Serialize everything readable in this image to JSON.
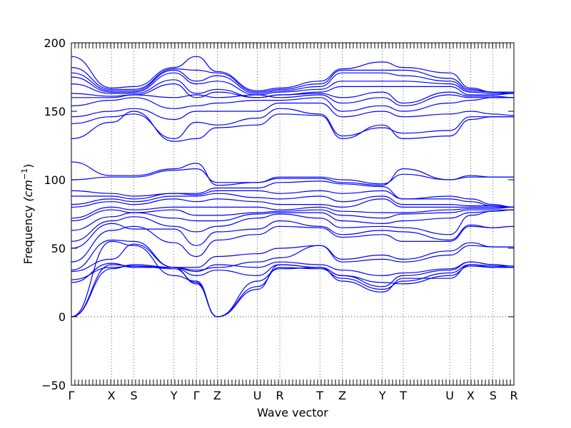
{
  "chart_data": {
    "type": "line",
    "xlabel": "Wave vector",
    "ylabel": "Frequency",
    "ylabel_unit": "(cm",
    "ylabel_unit_exp": "−1",
    "ylabel_unit_close": ")",
    "ylim": [
      -50,
      200
    ],
    "yticks": [
      -50,
      0,
      50,
      100,
      150,
      200
    ],
    "grid": false,
    "zero_line": "dotted",
    "line_color": "#0000ff",
    "high_symmetry_points": [
      {
        "label": "Γ",
        "x": 0.0
      },
      {
        "label": "X",
        "x": 0.5
      },
      {
        "label": "S",
        "x": 0.78
      },
      {
        "label": "Y",
        "x": 1.28
      },
      {
        "label": "Γ",
        "x": 1.56
      },
      {
        "label": "Z",
        "x": 1.82
      },
      {
        "label": "U",
        "x": 2.32
      },
      {
        "label": "R",
        "x": 2.6
      },
      {
        "label": "T",
        "x": 3.1
      },
      {
        "label": "Z",
        "x": 3.38
      },
      {
        "label": "Y",
        "x": 3.88
      },
      {
        "label": "T",
        "x": 4.14
      },
      {
        "label": "U",
        "x": 4.72
      },
      {
        "label": "X",
        "x": 4.98
      },
      {
        "label": "S",
        "x": 5.26
      },
      {
        "label": "R",
        "x": 5.52
      }
    ],
    "series": [
      {
        "values": [
          0,
          35,
          38,
          36,
          24,
          0,
          20,
          38,
          36,
          30,
          25,
          24,
          30,
          37,
          36,
          36
        ]
      },
      {
        "values": [
          0,
          38,
          37,
          35,
          25,
          0,
          22,
          36,
          35,
          28,
          20,
          26,
          32,
          38,
          36,
          36
        ]
      },
      {
        "values": [
          0,
          55,
          52,
          30,
          26,
          0,
          26,
          35,
          36,
          26,
          18,
          28,
          28,
          38,
          37,
          36
        ]
      },
      {
        "values": [
          25,
          39,
          36,
          36,
          30,
          34,
          30,
          38,
          36,
          30,
          22,
          30,
          34,
          40,
          38,
          36
        ]
      },
      {
        "values": [
          27,
          36,
          37,
          36,
          33,
          38,
          36,
          40,
          38,
          34,
          30,
          32,
          35,
          40,
          38,
          37
        ]
      },
      {
        "values": [
          33,
          42,
          53,
          36,
          34,
          36,
          40,
          43,
          52,
          40,
          42,
          40,
          45,
          52,
          51,
          51
        ]
      },
      {
        "values": [
          34,
          56,
          55,
          36,
          36,
          44,
          46,
          50,
          52,
          42,
          45,
          42,
          48,
          54,
          51,
          51
        ]
      },
      {
        "values": [
          40,
          63,
          66,
          54,
          44,
          56,
          60,
          66,
          65,
          58,
          60,
          55,
          55,
          66,
          65,
          66
        ]
      },
      {
        "values": [
          50,
          68,
          64,
          64,
          52,
          62,
          64,
          70,
          66,
          60,
          63,
          62,
          56,
          67,
          65,
          66
        ]
      },
      {
        "values": [
          55,
          70,
          73,
          66,
          62,
          66,
          72,
          75,
          72,
          65,
          66,
          65,
          60,
          74,
          77,
          78
        ]
      },
      {
        "values": [
          63,
          73,
          76,
          72,
          70,
          70,
          75,
          76,
          76,
          70,
          68,
          70,
          72,
          76,
          77,
          78
        ]
      },
      {
        "values": [
          70,
          78,
          76,
          78,
          74,
          74,
          76,
          77,
          78,
          74,
          72,
          75,
          76,
          78,
          78,
          78
        ]
      },
      {
        "values": [
          72,
          80,
          78,
          80,
          80,
          80,
          80,
          78,
          80,
          77,
          76,
          76,
          78,
          79,
          79,
          80
        ]
      },
      {
        "values": [
          80,
          84,
          82,
          86,
          84,
          86,
          84,
          82,
          82,
          80,
          86,
          80,
          80,
          80,
          80,
          80
        ]
      },
      {
        "values": [
          82,
          86,
          84,
          88,
          88,
          90,
          87,
          86,
          88,
          84,
          88,
          82,
          82,
          81,
          81,
          80
        ]
      },
      {
        "values": [
          88,
          88,
          86,
          90,
          89,
          92,
          92,
          90,
          92,
          90,
          92,
          86,
          86,
          84,
          81,
          80
        ]
      },
      {
        "values": [
          92,
          90,
          88,
          90,
          90,
          94,
          94,
          98,
          99,
          97,
          95,
          86,
          88,
          86,
          82,
          80
        ]
      },
      {
        "values": [
          100,
          102,
          102,
          107,
          108,
          98,
          98,
          102,
          102,
          100,
          97,
          104,
          100,
          102,
          102,
          102
        ]
      },
      {
        "values": [
          113,
          103,
          103,
          108,
          112,
          96,
          98,
          101,
          101,
          98,
          96,
          108,
          100,
          103,
          102,
          102
        ]
      },
      {
        "values": [
          130,
          142,
          150,
          128,
          130,
          138,
          140,
          148,
          147,
          130,
          140,
          130,
          132,
          144,
          146,
          146
        ]
      },
      {
        "values": [
          141,
          146,
          148,
          130,
          142,
          140,
          145,
          152,
          148,
          132,
          138,
          134,
          136,
          146,
          146,
          146
        ]
      },
      {
        "values": [
          146,
          150,
          152,
          144,
          150,
          150,
          150,
          156,
          156,
          146,
          150,
          146,
          148,
          150,
          148,
          147
        ]
      },
      {
        "values": [
          154,
          158,
          160,
          152,
          154,
          156,
          158,
          158,
          160,
          150,
          154,
          150,
          156,
          158,
          160,
          160
        ]
      },
      {
        "values": [
          160,
          160,
          162,
          160,
          162,
          160,
          162,
          160,
          162,
          156,
          160,
          154,
          162,
          160,
          160,
          160
        ]
      },
      {
        "values": [
          163,
          161,
          162,
          170,
          160,
          164,
          160,
          162,
          163,
          160,
          164,
          156,
          164,
          161,
          161,
          160
        ]
      },
      {
        "values": [
          170,
          163,
          163,
          173,
          163,
          166,
          160,
          162,
          164,
          168,
          168,
          168,
          168,
          162,
          162,
          163
        ]
      },
      {
        "values": [
          175,
          164,
          164,
          178,
          170,
          172,
          162,
          164,
          166,
          172,
          172,
          172,
          170,
          164,
          163,
          163
        ]
      },
      {
        "values": [
          178,
          165,
          165,
          180,
          172,
          176,
          163,
          165,
          168,
          178,
          178,
          176,
          172,
          165,
          164,
          163
        ]
      },
      {
        "values": [
          182,
          166,
          166,
          181,
          180,
          178,
          164,
          166,
          170,
          180,
          180,
          180,
          174,
          166,
          164,
          164
        ]
      },
      {
        "values": [
          190,
          167,
          168,
          182,
          190,
          179,
          165,
          167,
          172,
          181,
          186,
          182,
          178,
          167,
          164,
          164
        ]
      }
    ]
  }
}
